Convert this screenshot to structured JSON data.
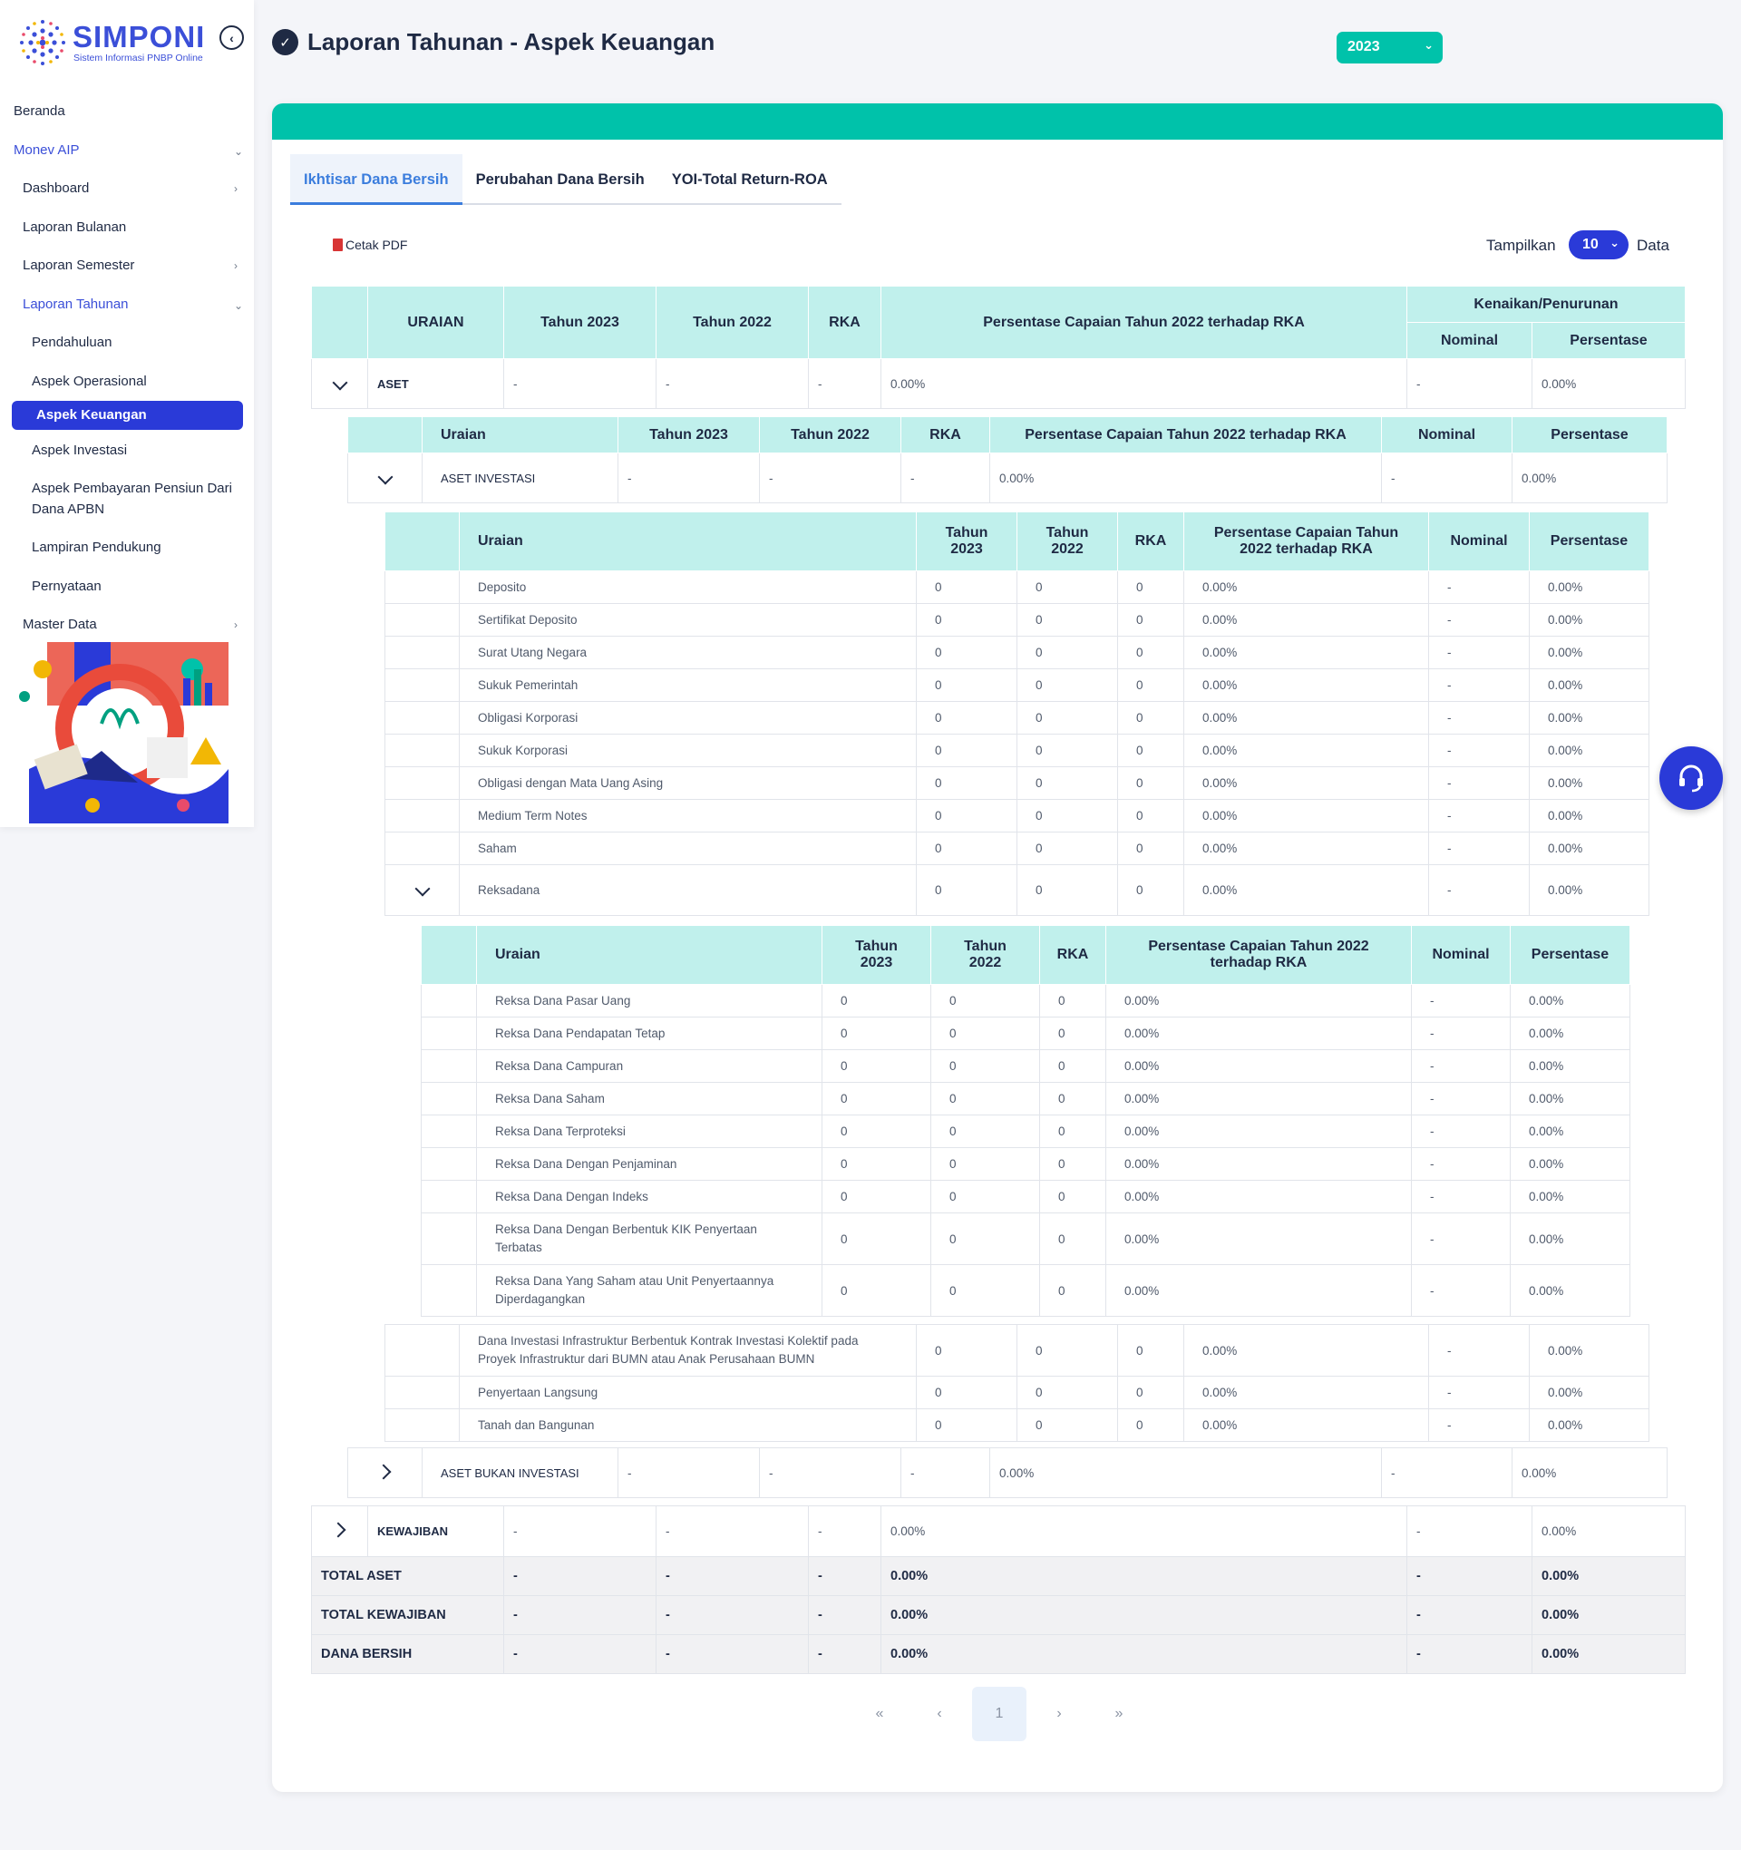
{
  "sidebar": {
    "logo_title": "SIMPONI",
    "logo_sub": "Sistem Informasi PNBP Online",
    "items": {
      "beranda": "Beranda",
      "monev": "Monev AIP",
      "dashboard": "Dashboard",
      "lap_bulanan": "Laporan Bulanan",
      "lap_semester": "Laporan Semester",
      "lap_tahunan": "Laporan Tahunan",
      "pendahuluan": "Pendahuluan",
      "aspek_operasional": "Aspek Operasional",
      "aspek_keuangan": "Aspek Keuangan",
      "aspek_investasi": "Aspek Investasi",
      "aspek_pensiun_1": "Aspek Pembayaran Pensiun Dari",
      "aspek_pensiun_2": "Dana APBN",
      "lampiran": "Lampiran Pendukung",
      "pernyataan": "Pernyataan",
      "master_data": "Master Data"
    }
  },
  "header": {
    "title": "Laporan Tahunan - Aspek Keuangan",
    "year": "2023"
  },
  "tabs": [
    "Ikhtisar Dana Bersih",
    "Perubahan Dana Bersih",
    "YOI-Total Return-ROA"
  ],
  "toolbar": {
    "print": "Cetak PDF",
    "show_label": "Tampilkan",
    "show_value": "10",
    "show_suffix": "Data"
  },
  "main_table": {
    "headers": {
      "uraian": "URAIAN",
      "tahun_2023": "Tahun 2023",
      "tahun_2022": "Tahun 2022",
      "rka": "RKA",
      "persentase_capaian": "Persentase Capaian Tahun 2022 terhadap RKA",
      "kenaikan": "Kenaikan/Penurunan",
      "nominal": "Nominal",
      "persentase": "Persentase"
    },
    "aset": {
      "label": "ASET",
      "t2023": "-",
      "t2022": "-",
      "rka": "-",
      "capaian": "0.00%",
      "nominal": "-",
      "persen": "0.00%"
    },
    "kewajiban": {
      "label": "KEWAJIBAN",
      "t2023": "-",
      "t2022": "-",
      "rka": "-",
      "capaian": "0.00%",
      "nominal": "-",
      "persen": "0.00%"
    },
    "totals": [
      {
        "label": "TOTAL ASET",
        "t2023": "-",
        "t2022": "-",
        "rka": "-",
        "capaian": "0.00%",
        "nominal": "-",
        "persen": "0.00%"
      },
      {
        "label": "TOTAL KEWAJIBAN",
        "t2023": "-",
        "t2022": "-",
        "rka": "-",
        "capaian": "0.00%",
        "nominal": "-",
        "persen": "0.00%"
      },
      {
        "label": "DANA BERSIH",
        "t2023": "-",
        "t2022": "-",
        "rka": "-",
        "capaian": "0.00%",
        "nominal": "-",
        "persen": "0.00%"
      }
    ]
  },
  "level2": {
    "headers": {
      "uraian": "Uraian",
      "tahun_2023": "Tahun 2023",
      "tahun_2022": "Tahun 2022",
      "rka": "RKA",
      "persentase_capaian": "Persentase Capaian Tahun 2022 terhadap RKA",
      "nominal": "Nominal",
      "persentase": "Persentase"
    },
    "aset_investasi": {
      "label": "ASET INVESTASI",
      "t2023": "-",
      "t2022": "-",
      "rka": "-",
      "capaian": "0.00%",
      "nominal": "-",
      "persen": "0.00%"
    },
    "aset_bukan_investasi": {
      "label": "ASET BUKAN INVESTASI",
      "t2023": "-",
      "t2022": "-",
      "rka": "-",
      "capaian": "0.00%",
      "nominal": "-",
      "persen": "0.00%"
    }
  },
  "level3": {
    "headers": {
      "uraian": "Uraian",
      "tahun_2023_a": "Tahun",
      "tahun_2023_b": "2023",
      "tahun_2022_a": "Tahun",
      "tahun_2022_b": "2022",
      "rka": "RKA",
      "capaian_a": "Persentase Capaian Tahun",
      "capaian_b": "2022 terhadap RKA",
      "nominal": "Nominal",
      "persentase": "Persentase"
    },
    "rows": [
      {
        "label": "Deposito",
        "t2023": "0",
        "t2022": "0",
        "rka": "0",
        "capaian": "0.00%",
        "nominal": "-",
        "persen": "0.00%"
      },
      {
        "label": "Sertifikat Deposito",
        "t2023": "0",
        "t2022": "0",
        "rka": "0",
        "capaian": "0.00%",
        "nominal": "-",
        "persen": "0.00%"
      },
      {
        "label": "Surat Utang Negara",
        "t2023": "0",
        "t2022": "0",
        "rka": "0",
        "capaian": "0.00%",
        "nominal": "-",
        "persen": "0.00%"
      },
      {
        "label": "Sukuk Pemerintah",
        "t2023": "0",
        "t2022": "0",
        "rka": "0",
        "capaian": "0.00%",
        "nominal": "-",
        "persen": "0.00%"
      },
      {
        "label": "Obligasi Korporasi",
        "t2023": "0",
        "t2022": "0",
        "rka": "0",
        "capaian": "0.00%",
        "nominal": "-",
        "persen": "0.00%"
      },
      {
        "label": "Sukuk Korporasi",
        "t2023": "0",
        "t2022": "0",
        "rka": "0",
        "capaian": "0.00%",
        "nominal": "-",
        "persen": "0.00%"
      },
      {
        "label": "Obligasi dengan Mata Uang Asing",
        "t2023": "0",
        "t2022": "0",
        "rka": "0",
        "capaian": "0.00%",
        "nominal": "-",
        "persen": "0.00%"
      },
      {
        "label": "Medium Term Notes",
        "t2023": "0",
        "t2022": "0",
        "rka": "0",
        "capaian": "0.00%",
        "nominal": "-",
        "persen": "0.00%"
      },
      {
        "label": "Saham",
        "t2023": "0",
        "t2022": "0",
        "rka": "0",
        "capaian": "0.00%",
        "nominal": "-",
        "persen": "0.00%"
      }
    ],
    "reksadana": {
      "label": "Reksadana",
      "t2023": "0",
      "t2022": "0",
      "rka": "0",
      "capaian": "0.00%",
      "nominal": "-",
      "persen": "0.00%"
    },
    "after_rows": [
      {
        "label_a": "Dana Investasi Infrastruktur Berbentuk Kontrak Investasi Kolektif pada",
        "label_b": "Proyek Infrastruktur dari BUMN atau Anak Perusahaan BUMN",
        "t2023": "0",
        "t2022": "0",
        "rka": "0",
        "capaian": "0.00%",
        "nominal": "-",
        "persen": "0.00%"
      },
      {
        "label_a": "Penyertaan Langsung",
        "label_b": "",
        "t2023": "0",
        "t2022": "0",
        "rka": "0",
        "capaian": "0.00%",
        "nominal": "-",
        "persen": "0.00%"
      },
      {
        "label_a": "Tanah dan Bangunan",
        "label_b": "",
        "t2023": "0",
        "t2022": "0",
        "rka": "0",
        "capaian": "0.00%",
        "nominal": "-",
        "persen": "0.00%"
      }
    ]
  },
  "level4": {
    "headers": {
      "uraian": "Uraian",
      "tahun_2023_a": "Tahun",
      "tahun_2023_b": "2023",
      "tahun_2022_a": "Tahun",
      "tahun_2022_b": "2022",
      "rka": "RKA",
      "capaian_a": "Persentase Capaian Tahun 2022",
      "capaian_b": "terhadap RKA",
      "nominal": "Nominal",
      "persentase": "Persentase"
    },
    "rows": [
      {
        "label_a": "Reksa Dana Pasar Uang",
        "label_b": "",
        "t2023": "0",
        "t2022": "0",
        "rka": "0",
        "capaian": "0.00%",
        "nominal": "-",
        "persen": "0.00%"
      },
      {
        "label_a": "Reksa Dana Pendapatan Tetap",
        "label_b": "",
        "t2023": "0",
        "t2022": "0",
        "rka": "0",
        "capaian": "0.00%",
        "nominal": "-",
        "persen": "0.00%"
      },
      {
        "label_a": "Reksa Dana Campuran",
        "label_b": "",
        "t2023": "0",
        "t2022": "0",
        "rka": "0",
        "capaian": "0.00%",
        "nominal": "-",
        "persen": "0.00%"
      },
      {
        "label_a": "Reksa Dana Saham",
        "label_b": "",
        "t2023": "0",
        "t2022": "0",
        "rka": "0",
        "capaian": "0.00%",
        "nominal": "-",
        "persen": "0.00%"
      },
      {
        "label_a": "Reksa Dana Terproteksi",
        "label_b": "",
        "t2023": "0",
        "t2022": "0",
        "rka": "0",
        "capaian": "0.00%",
        "nominal": "-",
        "persen": "0.00%"
      },
      {
        "label_a": "Reksa Dana Dengan Penjaminan",
        "label_b": "",
        "t2023": "0",
        "t2022": "0",
        "rka": "0",
        "capaian": "0.00%",
        "nominal": "-",
        "persen": "0.00%"
      },
      {
        "label_a": "Reksa Dana Dengan Indeks",
        "label_b": "",
        "t2023": "0",
        "t2022": "0",
        "rka": "0",
        "capaian": "0.00%",
        "nominal": "-",
        "persen": "0.00%"
      },
      {
        "label_a": "Reksa Dana Dengan Berbentuk KIK Penyertaan",
        "label_b": "Terbatas",
        "t2023": "0",
        "t2022": "0",
        "rka": "0",
        "capaian": "0.00%",
        "nominal": "-",
        "persen": "0.00%"
      },
      {
        "label_a": "Reksa Dana Yang Saham atau Unit Penyertaannya",
        "label_b": "Diperdagangkan",
        "t2023": "0",
        "t2022": "0",
        "rka": "0",
        "capaian": "0.00%",
        "nominal": "-",
        "persen": "0.00%"
      }
    ]
  },
  "pagination": {
    "first": "«",
    "prev": "‹",
    "page": "1",
    "next": "›",
    "last": "»"
  }
}
